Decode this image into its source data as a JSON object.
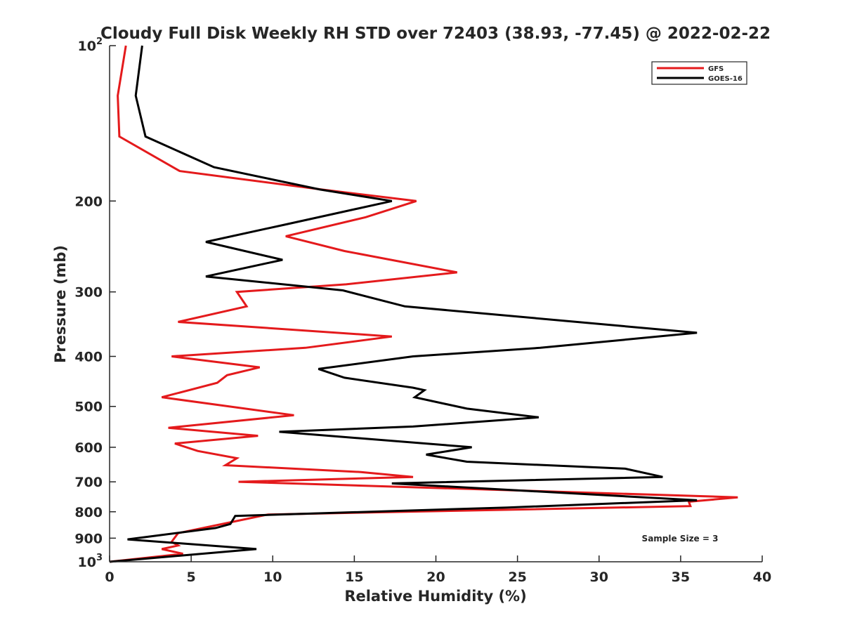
{
  "chart_data": {
    "type": "line",
    "title": "Cloudy Full Disk Weekly RH STD over 72403 (38.93, -77.45) @ 2022-02-22",
    "xlabel": "Relative Humidity (%)",
    "ylabel": "Pressure (mb)",
    "xlim": [
      0,
      40
    ],
    "ylim": [
      100,
      1000
    ],
    "y_scale": "log",
    "y_reversed": true,
    "grid": false,
    "legend": "top-right",
    "x_ticks": [
      "0",
      "5",
      "10",
      "15",
      "20",
      "25",
      "30",
      "35",
      "40"
    ],
    "y_ticks": [
      {
        "value": 100,
        "label": "10",
        "sup": "2"
      },
      {
        "value": 200,
        "label": "200",
        "sup": ""
      },
      {
        "value": 300,
        "label": "300",
        "sup": ""
      },
      {
        "value": 400,
        "label": "400",
        "sup": ""
      },
      {
        "value": 500,
        "label": "500",
        "sup": ""
      },
      {
        "value": 600,
        "label": "600",
        "sup": ""
      },
      {
        "value": 700,
        "label": "700",
        "sup": ""
      },
      {
        "value": 800,
        "label": "800",
        "sup": ""
      },
      {
        "value": 900,
        "label": "900",
        "sup": ""
      },
      {
        "value": 1000,
        "label": "10",
        "sup": "3"
      }
    ],
    "annotation": "Sample Size = 3",
    "series": [
      {
        "name": "GFS",
        "color": "#e41a1c",
        "points": [
          [
            1.0,
            100
          ],
          [
            0.5,
            125
          ],
          [
            0.6,
            150
          ],
          [
            4.3,
            175
          ],
          [
            13.0,
            190
          ],
          [
            18.8,
            200
          ],
          [
            15.7,
            215
          ],
          [
            10.8,
            234
          ],
          [
            14.4,
            250
          ],
          [
            21.3,
            275
          ],
          [
            14.5,
            290
          ],
          [
            7.8,
            300
          ],
          [
            8.4,
            320
          ],
          [
            4.2,
            343
          ],
          [
            17.3,
            366
          ],
          [
            12.0,
            385
          ],
          [
            3.8,
            400
          ],
          [
            9.2,
            420
          ],
          [
            7.2,
            435
          ],
          [
            6.6,
            450
          ],
          [
            3.2,
            480
          ],
          [
            11.3,
            520
          ],
          [
            3.6,
            550
          ],
          [
            9.1,
            570
          ],
          [
            4.0,
            590
          ],
          [
            5.4,
            610
          ],
          [
            7.8,
            630
          ],
          [
            7.1,
            650
          ],
          [
            15.4,
            670
          ],
          [
            18.6,
            685
          ],
          [
            7.9,
            700
          ],
          [
            38.5,
            750
          ],
          [
            35.5,
            765
          ],
          [
            35.6,
            780
          ],
          [
            9.7,
            810
          ],
          [
            7.7,
            835
          ],
          [
            4.2,
            880
          ],
          [
            3.8,
            915
          ],
          [
            4.2,
            930
          ],
          [
            3.2,
            945
          ],
          [
            4.5,
            965
          ],
          [
            0,
            1000
          ]
        ]
      },
      {
        "name": "GOES-16",
        "color": "#000000",
        "points": [
          [
            2.0,
            100
          ],
          [
            1.6,
            125
          ],
          [
            2.2,
            150
          ],
          [
            6.4,
            172
          ],
          [
            12.9,
            190
          ],
          [
            17.3,
            200
          ],
          [
            10.8,
            222
          ],
          [
            5.9,
            240
          ],
          [
            10.6,
            260
          ],
          [
            5.9,
            280
          ],
          [
            14.3,
            298
          ],
          [
            18.1,
            320
          ],
          [
            36.0,
            360
          ],
          [
            26.4,
            385
          ],
          [
            18.6,
            400
          ],
          [
            12.8,
            423
          ],
          [
            14.4,
            440
          ],
          [
            18.6,
            460
          ],
          [
            19.3,
            465
          ],
          [
            18.7,
            480
          ],
          [
            21.9,
            505
          ],
          [
            26.3,
            525
          ],
          [
            18.6,
            547
          ],
          [
            10.4,
            560
          ],
          [
            22.2,
            600
          ],
          [
            19.4,
            620
          ],
          [
            21.9,
            640
          ],
          [
            31.6,
            660
          ],
          [
            33.9,
            685
          ],
          [
            17.3,
            705
          ],
          [
            36.0,
            760
          ],
          [
            24.4,
            785
          ],
          [
            7.7,
            815
          ],
          [
            7.6,
            825
          ],
          [
            7.4,
            845
          ],
          [
            6.5,
            860
          ],
          [
            1.1,
            905
          ],
          [
            9.0,
            945
          ],
          [
            0,
            1000
          ]
        ]
      }
    ]
  }
}
